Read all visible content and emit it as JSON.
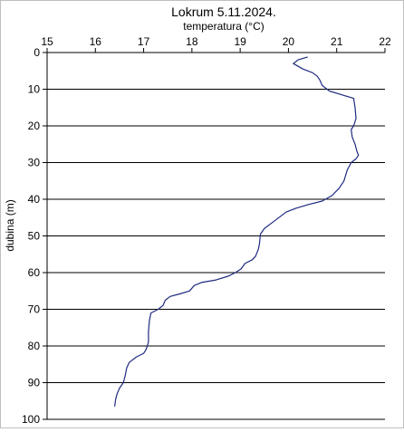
{
  "chart_data": {
    "type": "line",
    "title": "Lokrum 5.11.2024.",
    "xlabel": "temperatura  (°C)",
    "ylabel": "dubina (m)",
    "x_axis_position": "top",
    "y_axis_inverted": true,
    "xlim": [
      15,
      22
    ],
    "ylim": [
      0,
      100
    ],
    "x_ticks": [
      15,
      16,
      17,
      18,
      19,
      20,
      21,
      22
    ],
    "y_ticks": [
      0,
      10,
      20,
      30,
      40,
      50,
      60,
      70,
      80,
      90,
      100
    ],
    "grid": {
      "horizontal": true,
      "vertical": false
    },
    "line_color": "#1f2a80",
    "series": [
      {
        "points": [
          [
            20.4,
            1.2
          ],
          [
            20.2,
            2.0
          ],
          [
            20.1,
            3.0
          ],
          [
            20.3,
            4.5
          ],
          [
            20.5,
            5.5
          ],
          [
            20.6,
            6.5
          ],
          [
            20.65,
            7.5
          ],
          [
            20.7,
            9.0
          ],
          [
            20.85,
            10.5
          ],
          [
            21.1,
            11.5
          ],
          [
            21.35,
            12.5
          ],
          [
            21.38,
            15.0
          ],
          [
            21.4,
            18.0
          ],
          [
            21.35,
            20.0
          ],
          [
            21.3,
            21.0
          ],
          [
            21.32,
            23.0
          ],
          [
            21.38,
            25.0
          ],
          [
            21.42,
            27.0
          ],
          [
            21.45,
            28.0
          ],
          [
            21.4,
            29.0
          ],
          [
            21.3,
            30.0
          ],
          [
            21.22,
            32.0
          ],
          [
            21.15,
            35.0
          ],
          [
            21.05,
            37.0
          ],
          [
            20.9,
            39.0
          ],
          [
            20.7,
            40.5
          ],
          [
            20.4,
            41.5
          ],
          [
            20.15,
            42.5
          ],
          [
            19.95,
            43.5
          ],
          [
            19.8,
            45.0
          ],
          [
            19.65,
            46.5
          ],
          [
            19.5,
            48.0
          ],
          [
            19.42,
            49.5
          ],
          [
            19.4,
            52.0
          ],
          [
            19.38,
            53.5
          ],
          [
            19.32,
            55.5
          ],
          [
            19.25,
            56.5
          ],
          [
            19.1,
            57.5
          ],
          [
            19.02,
            59.0
          ],
          [
            18.9,
            60.0
          ],
          [
            18.75,
            61.0
          ],
          [
            18.5,
            62.0
          ],
          [
            18.2,
            62.7
          ],
          [
            18.05,
            63.5
          ],
          [
            17.95,
            65.0
          ],
          [
            17.75,
            65.8
          ],
          [
            17.55,
            66.5
          ],
          [
            17.45,
            67.5
          ],
          [
            17.4,
            69.0
          ],
          [
            17.3,
            70.0
          ],
          [
            17.15,
            71.0
          ],
          [
            17.12,
            73.0
          ],
          [
            17.1,
            76.0
          ],
          [
            17.1,
            79.0
          ],
          [
            17.05,
            81.0
          ],
          [
            17.0,
            82.0
          ],
          [
            16.85,
            83.0
          ],
          [
            16.7,
            84.5
          ],
          [
            16.65,
            86.0
          ],
          [
            16.62,
            88.0
          ],
          [
            16.58,
            90.0
          ],
          [
            16.5,
            91.5
          ],
          [
            16.45,
            93.0
          ],
          [
            16.42,
            94.5
          ],
          [
            16.4,
            96.5
          ]
        ]
      }
    ]
  }
}
